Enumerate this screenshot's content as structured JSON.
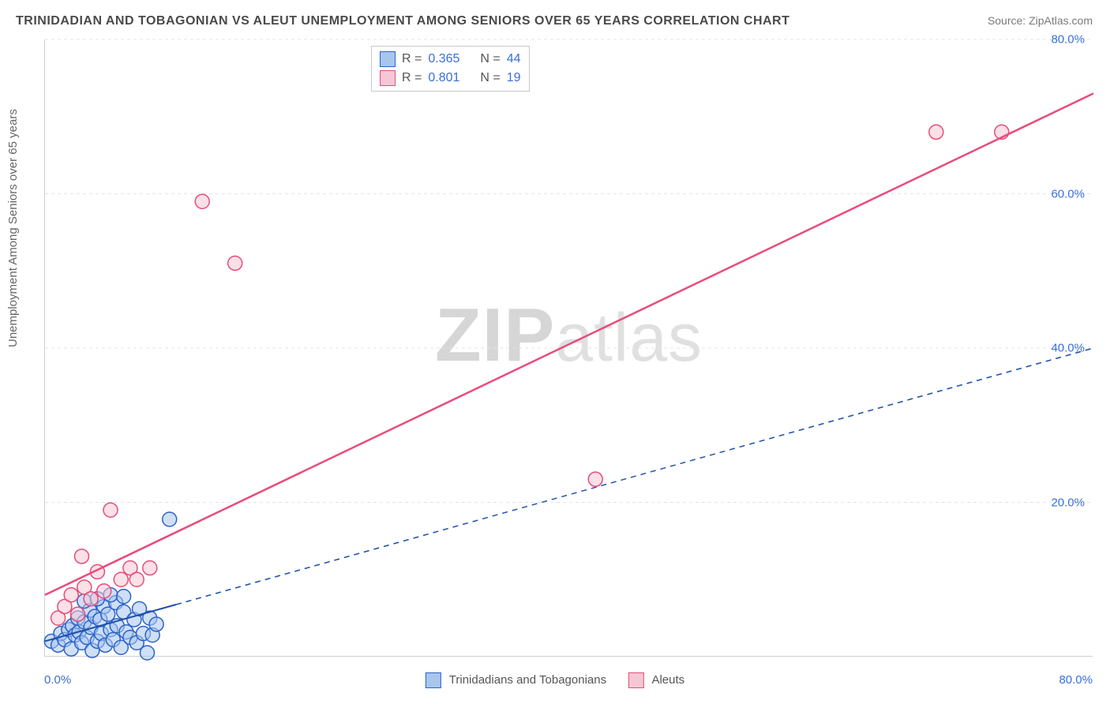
{
  "title": "TRINIDADIAN AND TOBAGONIAN VS ALEUT UNEMPLOYMENT AMONG SENIORS OVER 65 YEARS CORRELATION CHART",
  "source": "Source: ZipAtlas.com",
  "watermark_prefix": "ZIP",
  "watermark_suffix": "atlas",
  "ylabel": "Unemployment Among Seniors over 65 years",
  "chart": {
    "type": "scatter",
    "background_color": "#ffffff",
    "grid_color": "#e4e4e4",
    "axis_color": "#cfcfcf",
    "tick_color": "#3a6fd8",
    "tick_fontsize": 15,
    "title_fontsize": 16,
    "label_fontsize": 15,
    "xlim": [
      0,
      80
    ],
    "ylim": [
      0,
      80
    ],
    "yticks": [
      20,
      40,
      60,
      80
    ],
    "ytick_labels": [
      "20.0%",
      "40.0%",
      "60.0%",
      "80.0%"
    ],
    "x_min_label": "0.0%",
    "x_max_label": "80.0%",
    "marker_radius": 9,
    "marker_stroke_width": 1.5,
    "series": [
      {
        "name": "Trinidadians and Tobagonians",
        "fill": "#a8c5ee",
        "stroke": "#2c63c9",
        "fill_opacity": 0.55,
        "trend": {
          "stroke": "#1d4fa8",
          "width": 2,
          "dash": "none",
          "solid_end_x": 10,
          "y0": 2.0,
          "y1": 40.0
        },
        "points": [
          [
            0.5,
            2.0
          ],
          [
            1.0,
            1.5
          ],
          [
            1.2,
            3.0
          ],
          [
            1.5,
            2.2
          ],
          [
            1.8,
            3.5
          ],
          [
            2.0,
            1.0
          ],
          [
            2.1,
            4.0
          ],
          [
            2.3,
            2.8
          ],
          [
            2.5,
            5.0
          ],
          [
            2.6,
            3.2
          ],
          [
            2.8,
            1.8
          ],
          [
            3.0,
            4.5
          ],
          [
            3.2,
            2.5
          ],
          [
            3.4,
            6.0
          ],
          [
            3.5,
            3.8
          ],
          [
            3.6,
            0.8
          ],
          [
            3.8,
            5.2
          ],
          [
            4.0,
            2.0
          ],
          [
            4.2,
            4.8
          ],
          [
            4.3,
            3.0
          ],
          [
            4.5,
            6.5
          ],
          [
            4.6,
            1.5
          ],
          [
            4.8,
            5.5
          ],
          [
            5.0,
            3.5
          ],
          [
            5.2,
            2.2
          ],
          [
            5.4,
            7.0
          ],
          [
            5.5,
            4.0
          ],
          [
            5.8,
            1.2
          ],
          [
            6.0,
            5.8
          ],
          [
            6.2,
            3.2
          ],
          [
            6.5,
            2.5
          ],
          [
            6.8,
            4.8
          ],
          [
            7.0,
            1.8
          ],
          [
            7.2,
            6.2
          ],
          [
            7.5,
            3.0
          ],
          [
            7.8,
            0.5
          ],
          [
            8.0,
            5.0
          ],
          [
            8.2,
            2.8
          ],
          [
            8.5,
            4.2
          ],
          [
            3.0,
            7.2
          ],
          [
            4.0,
            7.5
          ],
          [
            5.0,
            8.0
          ],
          [
            6.0,
            7.8
          ],
          [
            9.5,
            17.8
          ]
        ]
      },
      {
        "name": "Aleuts",
        "fill": "#f5c7d4",
        "stroke": "#e84c7a",
        "fill_opacity": 0.55,
        "trend": {
          "stroke": "#e84c7a",
          "width": 2.5,
          "dash": "none",
          "solid_end_x": 80,
          "y0": 8.0,
          "y1": 73.0
        },
        "points": [
          [
            1.0,
            5.0
          ],
          [
            1.5,
            6.5
          ],
          [
            2.0,
            8.0
          ],
          [
            2.5,
            5.5
          ],
          [
            2.8,
            13.0
          ],
          [
            3.0,
            9.0
          ],
          [
            3.5,
            7.5
          ],
          [
            4.0,
            11.0
          ],
          [
            4.5,
            8.5
          ],
          [
            5.0,
            19.0
          ],
          [
            5.8,
            10.0
          ],
          [
            6.5,
            11.5
          ],
          [
            7.0,
            10.0
          ],
          [
            8.0,
            11.5
          ],
          [
            12.0,
            59.0
          ],
          [
            14.5,
            51.0
          ],
          [
            42.0,
            23.0
          ],
          [
            68.0,
            68.0
          ],
          [
            73.0,
            68.0
          ]
        ]
      }
    ],
    "stat_box": {
      "rows": [
        {
          "swatch_fill": "#a8c5ee",
          "swatch_stroke": "#2c63c9",
          "r_label": "R =",
          "r": "0.365",
          "n_label": "N =",
          "n": "44"
        },
        {
          "swatch_fill": "#f5c7d4",
          "swatch_stroke": "#e84c7a",
          "r_label": "R =",
          "r": "0.801",
          "n_label": "N =",
          "n": "19"
        }
      ]
    },
    "legend": [
      {
        "swatch_fill": "#a8c5ee",
        "swatch_stroke": "#2c63c9",
        "label": "Trinidadians and Tobagonians"
      },
      {
        "swatch_fill": "#f5c7d4",
        "swatch_stroke": "#e84c7a",
        "label": "Aleuts"
      }
    ]
  }
}
